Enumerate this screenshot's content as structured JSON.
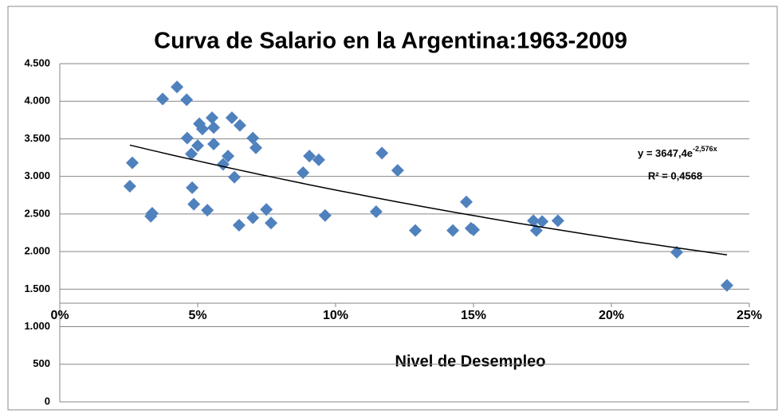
{
  "chart_data": {
    "type": "scatter",
    "title": "Curva de Salario en la Argentina:1963-2009",
    "x_label": "Nivel de Desempleo",
    "color": "#4f81bd",
    "x": [
      0.0254,
      0.0263,
      0.033,
      0.0335,
      0.0373,
      0.0425,
      0.046,
      0.0462,
      0.0477,
      0.048,
      0.0486,
      0.05,
      0.0506,
      0.0517,
      0.0535,
      0.0552,
      0.0558,
      0.0558,
      0.0592,
      0.061,
      0.0624,
      0.0633,
      0.065,
      0.0653,
      0.07,
      0.07,
      0.0711,
      0.0749,
      0.0766,
      0.0882,
      0.0905,
      0.0939,
      0.0962,
      0.1147,
      0.1168,
      0.1225,
      0.1289,
      0.1425,
      0.1474,
      0.1491,
      0.15,
      0.1717,
      0.1728,
      0.1749,
      0.1806,
      0.2237,
      0.2419
    ],
    "values": [
      2870,
      3180,
      2470,
      2510,
      4030,
      4190,
      4020,
      3510,
      3300,
      2850,
      2630,
      3410,
      3700,
      3630,
      2550,
      3780,
      3650,
      3430,
      3160,
      3270,
      3780,
      2990,
      2350,
      3680,
      3510,
      2450,
      3380,
      2560,
      2380,
      3050,
      3270,
      3220,
      2480,
      2530,
      3310,
      3080,
      2280,
      2280,
      2660,
      2310,
      2290,
      2410,
      2280,
      2400,
      2410,
      1990,
      1550
    ],
    "xlim": [
      0,
      0.25
    ],
    "xticks": [
      {
        "value": 0,
        "label": "0%"
      },
      {
        "value": 0.05,
        "label": "5%"
      },
      {
        "value": 0.1,
        "label": "10%"
      },
      {
        "value": 0.15,
        "label": "15%"
      },
      {
        "value": 0.2,
        "label": "20%"
      },
      {
        "value": 0.25,
        "label": "25%"
      }
    ],
    "ylim": [
      0,
      4500
    ],
    "yticks": [
      0,
      500,
      {
        "value": 1000,
        "label": "1.000"
      },
      {
        "value": 1500,
        "label": "1.500"
      },
      {
        "value": 2000,
        "label": "2.000"
      },
      {
        "value": 2500,
        "label": "2.500"
      },
      {
        "value": 3000,
        "label": "3.000"
      },
      {
        "value": 3500,
        "label": "3.500"
      },
      {
        "value": 4000,
        "label": "4.000"
      },
      {
        "value": 4500,
        "label": "4.500"
      }
    ],
    "grid": true,
    "trendline": {
      "a": 3647.4,
      "b": -2.576,
      "equation": "y = 3647,4e",
      "exponent": "-2,576x",
      "r2_label": "R² = 0,4568"
    }
  }
}
